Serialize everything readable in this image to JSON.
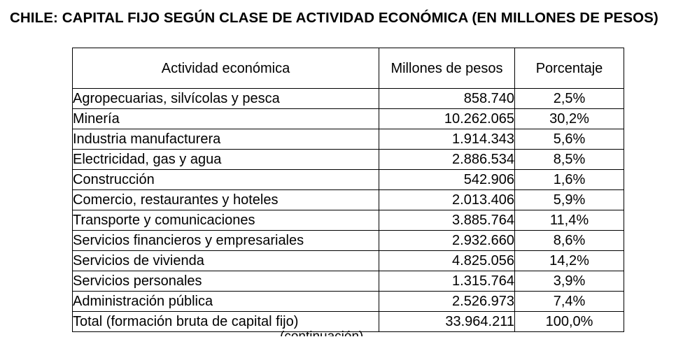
{
  "document": {
    "title": "CHILE: CAPITAL FIJO SEGÚN CLASE DE ACTIVIDAD ECONÓMICA (EN MILLONES DE PESOS)",
    "table": {
      "headers": {
        "activity": "Actividad económica",
        "millions": "Millones de pesos",
        "percent": "Porcentaje"
      },
      "rows": [
        {
          "activity": "Agropecuarias, silvícolas y pesca",
          "millions": "858.740",
          "percent": "2,5%"
        },
        {
          "activity": "Minería",
          "millions": "10.262.065",
          "percent": "30,2%"
        },
        {
          "activity": "Industria manufacturera",
          "millions": "1.914.343",
          "percent": "5,6%"
        },
        {
          "activity": "Electricidad, gas y agua",
          "millions": "2.886.534",
          "percent": "8,5%"
        },
        {
          "activity": "Construcción",
          "millions": "542.906",
          "percent": "1,6%"
        },
        {
          "activity": "Comercio, restaurantes y hoteles",
          "millions": "2.013.406",
          "percent": "5,9%"
        },
        {
          "activity": "Transporte y comunicaciones",
          "millions": "3.885.764",
          "percent": "11,4%"
        },
        {
          "activity": "Servicios financieros y empresariales",
          "millions": "2.932.660",
          "percent": "8,6%"
        },
        {
          "activity": "Servicios de vivienda",
          "millions": "4.825.056",
          "percent": "14,2%"
        },
        {
          "activity": "Servicios personales",
          "millions": "1.315.764",
          "percent": "3,9%"
        },
        {
          "activity": "Administración pública",
          "millions": "2.526.973",
          "percent": "7,4%"
        },
        {
          "activity": "Total (formación bruta de capital fijo)",
          "millions": "33.964.211",
          "percent": "100,0%"
        }
      ]
    },
    "cutoff_text": "(continuación)"
  }
}
